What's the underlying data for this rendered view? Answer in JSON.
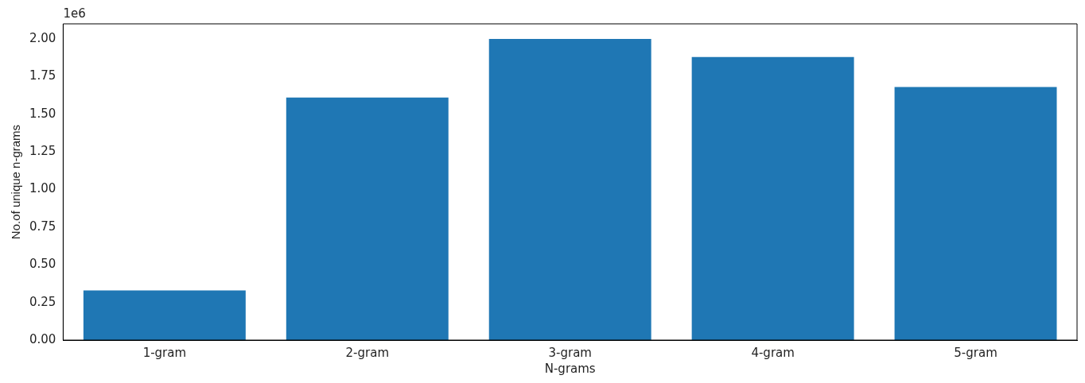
{
  "chart_data": {
    "type": "bar",
    "xlabel": "N-grams",
    "ylabel": "No.of unique n-grams",
    "categories": [
      "1-gram",
      "2-gram",
      "3-gram",
      "4-gram",
      "5-gram"
    ],
    "values": [
      0.33,
      1.61,
      2.0,
      1.88,
      1.68
    ],
    "color": "#1f77b4",
    "ylim": [
      0,
      2.1
    ],
    "yticks": [
      {
        "value": 0,
        "label": "0.00"
      },
      {
        "value": 0.25,
        "label": "0.25"
      },
      {
        "value": 0.5,
        "label": "0.50"
      },
      {
        "value": 0.75,
        "label": "0.75"
      },
      {
        "value": 1,
        "label": "1.00"
      },
      {
        "value": 1.25,
        "label": "1.25"
      },
      {
        "value": 1.5,
        "label": "1.50"
      },
      {
        "value": 1.75,
        "label": "1.75"
      },
      {
        "value": 2,
        "label": "2.00"
      }
    ],
    "annotations": [
      "1e6"
    ],
    "grid": false,
    "legend": false
  }
}
